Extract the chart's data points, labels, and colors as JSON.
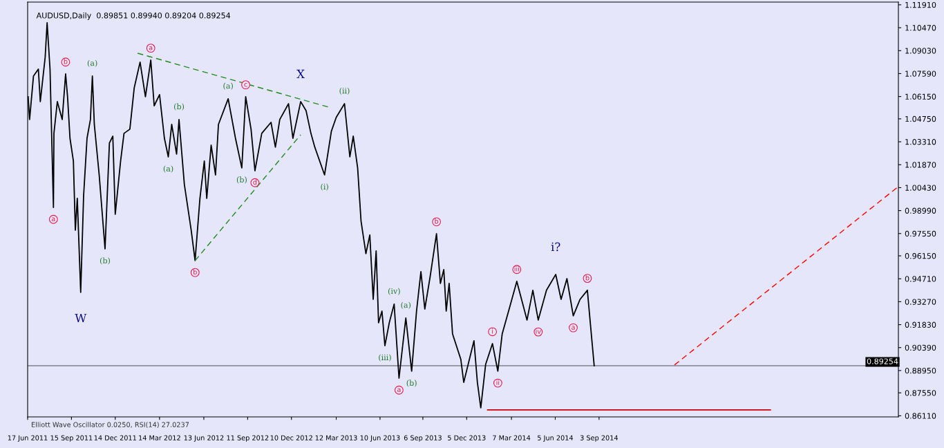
{
  "chart_data": {
    "type": "line",
    "title": "AUDUSD,Daily  0.89851 0.89940 0.89204 0.89254",
    "xlim": [
      "2011-06-17",
      "2016-05-10"
    ],
    "ylim": [
      0.8604,
      1.1208
    ],
    "xticks": [
      {
        "value": "2011-06-17",
        "label": "17 Jun 2011"
      },
      {
        "value": "2011-09-15",
        "label": "15 Sep 2011"
      },
      {
        "value": "2011-12-14",
        "label": "14 Dec 2011"
      },
      {
        "value": "2012-03-14",
        "label": "14 Mar 2012"
      },
      {
        "value": "2012-06-13",
        "label": "13 Jun 2012"
      },
      {
        "value": "2012-09-11",
        "label": "11 Sep 2012"
      },
      {
        "value": "2012-12-10",
        "label": "10 Dec 2012"
      },
      {
        "value": "2013-03-12",
        "label": "12 Mar 2013"
      },
      {
        "value": "2013-06-10",
        "label": "10 Jun 2013"
      },
      {
        "value": "2013-09-06",
        "label": "6 Sep 2013"
      },
      {
        "value": "2013-12-05",
        "label": "5 Dec 2013"
      },
      {
        "value": "2014-03-07",
        "label": "7 Mar 2014"
      },
      {
        "value": "2014-06-05",
        "label": "5 Jun 2014"
      },
      {
        "value": "2014-09-03",
        "label": "3 Sep 2014"
      }
    ],
    "yticks": [
      {
        "value": 1.1191,
        "label": "1.11910"
      },
      {
        "value": 1.1047,
        "label": "1.10470"
      },
      {
        "value": 1.0903,
        "label": "1.09030"
      },
      {
        "value": 1.0759,
        "label": "1.07590"
      },
      {
        "value": 1.0615,
        "label": "1.06150"
      },
      {
        "value": 1.0475,
        "label": "1.04750"
      },
      {
        "value": 1.0331,
        "label": "1.03310"
      },
      {
        "value": 1.0187,
        "label": "1.01870"
      },
      {
        "value": 1.0043,
        "label": "1.00430"
      },
      {
        "value": 0.9899,
        "label": "0.98990"
      },
      {
        "value": 0.9755,
        "label": "0.97550"
      },
      {
        "value": 0.9615,
        "label": "0.96150"
      },
      {
        "value": 0.9471,
        "label": "0.94710"
      },
      {
        "value": 0.9327,
        "label": "0.93270"
      },
      {
        "value": 0.9183,
        "label": "0.91830"
      },
      {
        "value": 0.9039,
        "label": "0.90390"
      },
      {
        "value": 0.8895,
        "label": "0.88950"
      },
      {
        "value": 0.8755,
        "label": "0.87550"
      },
      {
        "value": 0.8611,
        "label": "0.86110"
      }
    ],
    "grid": false,
    "marker": "none",
    "series": [
      {
        "color": "#000000",
        "line_style": "solid",
        "x": [
          "2011-06-18",
          "2011-06-21",
          "2011-06-29",
          "2011-07-09",
          "2011-07-13",
          "2011-07-23",
          "2011-07-27",
          "2011-08-02",
          "2011-08-09",
          "2011-08-10",
          "2011-08-17",
          "2011-08-27",
          "2011-09-03",
          "2011-09-07",
          "2011-09-12",
          "2011-09-19",
          "2011-09-23",
          "2011-09-27",
          "2011-10-04",
          "2011-10-10",
          "2011-10-17",
          "2011-10-24",
          "2011-10-28",
          "2011-11-01",
          "2011-11-11",
          "2011-11-23",
          "2011-12-02",
          "2011-12-09",
          "2011-12-14",
          "2011-12-25",
          "2012-01-01",
          "2012-01-13",
          "2012-01-22",
          "2012-02-03",
          "2012-02-14",
          "2012-02-25",
          "2012-03-03",
          "2012-03-14",
          "2012-03-24",
          "2012-04-01",
          "2012-04-08",
          "2012-04-18",
          "2012-04-23",
          "2012-05-04",
          "2012-05-18",
          "2012-05-26",
          "2012-06-05",
          "2012-06-14",
          "2012-06-19",
          "2012-06-28",
          "2012-07-07",
          "2012-07-13",
          "2012-08-02",
          "2012-08-17",
          "2012-08-30",
          "2012-09-07",
          "2012-09-18",
          "2012-09-26",
          "2012-10-10",
          "2012-10-29",
          "2012-11-07",
          "2012-11-16",
          "2012-12-04",
          "2012-12-13",
          "2012-12-29",
          "2013-01-09",
          "2013-01-19",
          "2013-01-27",
          "2013-02-16",
          "2013-03-02",
          "2013-03-12",
          "2013-03-29",
          "2013-04-09",
          "2013-04-16",
          "2013-04-25",
          "2013-05-02",
          "2013-05-12",
          "2013-05-20",
          "2013-05-27",
          "2013-06-02",
          "2013-06-07",
          "2013-06-14",
          "2013-06-20",
          "2013-06-29",
          "2013-07-09",
          "2013-07-19",
          "2013-08-02",
          "2013-08-14",
          "2013-08-24",
          "2013-09-02",
          "2013-09-10",
          "2013-09-21",
          "2013-10-04",
          "2013-10-12",
          "2013-10-19",
          "2013-10-24",
          "2013-10-30",
          "2013-11-06",
          "2013-11-23",
          "2013-11-29",
          "2013-12-20",
          "2013-12-27",
          "2014-01-03",
          "2014-01-13",
          "2014-01-27",
          "2014-02-07",
          "2014-02-16",
          "2014-03-04",
          "2014-03-18",
          "2014-04-08",
          "2014-04-20",
          "2014-05-01",
          "2014-05-18",
          "2014-06-06",
          "2014-06-17",
          "2014-06-29",
          "2014-07-12",
          "2014-07-26",
          "2014-08-10",
          "2014-08-16",
          "2014-08-24"
        ],
        "values": [
          1.0614,
          1.0471,
          1.0744,
          1.0787,
          1.0583,
          1.0861,
          1.1078,
          1.0787,
          0.9919,
          1.0384,
          1.0583,
          1.0471,
          1.0757,
          1.0614,
          1.0353,
          1.021,
          0.9776,
          0.9976,
          0.9386,
          0.9993,
          1.0353,
          1.0471,
          1.0744,
          1.044,
          1.0123,
          0.9659,
          1.0323,
          1.0366,
          0.9876,
          1.021,
          1.0384,
          1.041,
          1.067,
          1.0831,
          1.0614,
          1.0844,
          1.0557,
          1.0627,
          1.0353,
          1.0236,
          1.044,
          1.0254,
          1.0471,
          1.0063,
          0.9776,
          0.9585,
          0.9976,
          1.021,
          0.9976,
          1.031,
          1.0123,
          1.044,
          1.0601,
          1.0353,
          1.0167,
          1.0614,
          1.041,
          1.0149,
          1.0384,
          1.0453,
          1.0297,
          1.0471,
          1.057,
          1.0353,
          1.0583,
          1.0527,
          1.0384,
          1.0297,
          1.0123,
          1.0397,
          1.0484,
          1.057,
          1.0236,
          1.0366,
          1.0167,
          0.9833,
          0.9629,
          0.9746,
          0.9342,
          0.9646,
          0.9195,
          0.9268,
          0.9051,
          0.9195,
          0.9312,
          0.8847,
          0.9225,
          0.8891,
          0.9268,
          0.9516,
          0.9281,
          0.9485,
          0.9754,
          0.9442,
          0.9529,
          0.9268,
          0.9442,
          0.9125,
          0.8965,
          0.8821,
          0.9082,
          0.8821,
          0.8661,
          0.8934,
          0.9064,
          0.8891,
          0.9125,
          0.9299,
          0.9455,
          0.9212,
          0.9399,
          0.9212,
          0.9399,
          0.9498,
          0.9342,
          0.9472,
          0.9238,
          0.9342,
          0.9399,
          0.9195,
          0.8925
        ]
      },
      {
        "color": "#1f8a1f",
        "type": "line",
        "line_style": "dashed",
        "x": [
          "2012-01-29",
          "2013-02-24"
        ],
        "values": [
          1.0887,
          1.0549
        ]
      },
      {
        "color": "#1f8a1f",
        "type": "line",
        "line_style": "dashed",
        "x": [
          "2012-05-26",
          "2012-12-29"
        ],
        "values": [
          0.9585,
          1.0375
        ]
      },
      {
        "color": "#ff0000",
        "type": "line",
        "line_style": "dashed",
        "x": [
          "2015-02-05",
          "2016-05-10"
        ],
        "values": [
          0.893,
          1.005
        ]
      },
      {
        "color": "#cc0000",
        "type": "line",
        "line_style": "solid",
        "x": [
          "2014-01-17",
          "2015-08-21"
        ],
        "values": [
          0.8648,
          0.8648
        ]
      }
    ],
    "ref_lines": [
      {
        "axis": "y",
        "value": 0.89254,
        "label": "0.89254",
        "color": "#7f7f8f"
      }
    ],
    "annotations": [
      {
        "text": "a",
        "x": "2011-08-09",
        "y": 0.9919
      },
      {
        "text": "b",
        "x": "2011-09-03",
        "y": 1.0757
      },
      {
        "text": "(a)",
        "x": "2011-10-28",
        "y": 1.0744
      },
      {
        "text": "W",
        "x": "2011-10-04",
        "y": 0.9386
      },
      {
        "text": "(b)",
        "x": "2011-11-23",
        "y": 0.9659
      },
      {
        "text": "a",
        "x": "2012-02-25",
        "y": 1.0844
      },
      {
        "text": "(b)",
        "x": "2012-04-23",
        "y": 1.0471
      },
      {
        "text": "(a)",
        "x": "2012-04-01",
        "y": 1.0236
      },
      {
        "text": "c",
        "x": "2012-09-07",
        "y": 1.0614
      },
      {
        "text": "(a)",
        "x": "2012-08-02",
        "y": 1.0601
      },
      {
        "text": "X",
        "x": "2012-12-29",
        "y": 1.0583
      },
      {
        "text": "(b)",
        "x": "2012-08-30",
        "y": 1.0167
      },
      {
        "text": "d",
        "x": "2012-09-26",
        "y": 1.0149
      },
      {
        "text": "b",
        "x": "2012-05-26",
        "y": 0.9585
      },
      {
        "text": "(ii)",
        "x": "2013-03-29",
        "y": 1.057
      },
      {
        "text": "(i)",
        "x": "2013-02-16",
        "y": 1.0123
      },
      {
        "text": "b",
        "x": "2013-10-04",
        "y": 0.9754
      },
      {
        "text": "(iv)",
        "x": "2013-07-09",
        "y": 0.9312
      },
      {
        "text": "(a)",
        "x": "2013-08-02",
        "y": 0.9225
      },
      {
        "text": "(iii)",
        "x": "2013-06-20",
        "y": 0.9051
      },
      {
        "text": "(b)",
        "x": "2013-08-14",
        "y": 0.8891
      },
      {
        "text": "a",
        "x": "2013-07-19",
        "y": 0.8847
      },
      {
        "text": "i",
        "x": "2014-01-27",
        "y": 0.9064
      },
      {
        "text": "ii",
        "x": "2014-02-07",
        "y": 0.8891
      },
      {
        "text": "iii",
        "x": "2014-03-18",
        "y": 0.9455
      },
      {
        "text": "iv",
        "x": "2014-05-01",
        "y": 0.9212
      },
      {
        "text": "i?",
        "x": "2014-06-06",
        "y": 0.9498
      },
      {
        "text": "a",
        "x": "2014-07-12",
        "y": 0.9238
      },
      {
        "text": "b",
        "x": "2014-08-10",
        "y": 0.9399
      },
      "Elliott Wave Oscillator 0.0250, RSI(14) 27.0237"
    ]
  }
}
